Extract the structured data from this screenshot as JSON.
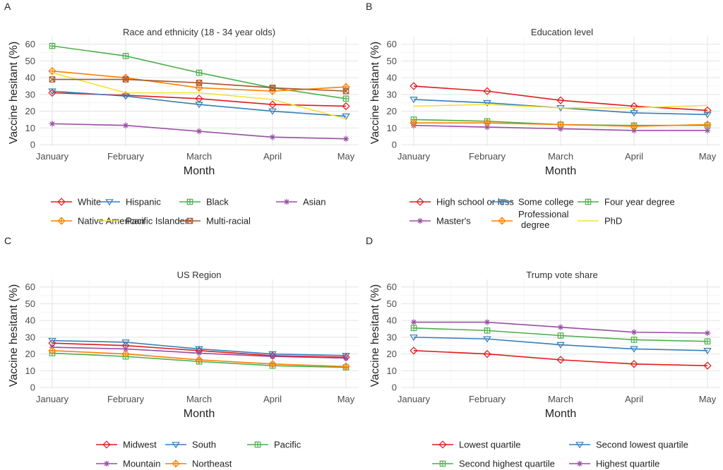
{
  "x_categories": [
    "January",
    "February",
    "March",
    "April",
    "May"
  ],
  "xlabel": "Month",
  "ylabel": "Vaccine hesitant (%)",
  "y_ticks": [
    0,
    10,
    20,
    30,
    40,
    50,
    60
  ],
  "chart_data": [
    {
      "type": "line",
      "panel_label": "A",
      "title": "Race and ethnicity (18 - 34 year olds)",
      "ylim": [
        0,
        62
      ],
      "grid": true,
      "legend_position": "bottom",
      "series": [
        {
          "name": "White",
          "color": "#e41a1c",
          "marker": "diamond",
          "values": [
            31,
            29.5,
            27.5,
            24,
            23
          ]
        },
        {
          "name": "Hispanic",
          "color": "#377eb8",
          "marker": "triangle-down",
          "values": [
            32,
            29,
            24,
            20,
            17
          ]
        },
        {
          "name": "Black",
          "color": "#4daf4a",
          "marker": "square-plus",
          "values": [
            59,
            53,
            43,
            34,
            27.5
          ]
        },
        {
          "name": "Asian",
          "color": "#984ea3",
          "marker": "asterisk",
          "values": [
            12.5,
            11.5,
            8,
            4.5,
            3.5
          ]
        },
        {
          "name": "Native American",
          "color": "#ff7f00",
          "marker": "diamond-plus",
          "values": [
            44,
            40,
            34,
            32,
            34.5
          ]
        },
        {
          "name": "Pacific Islander",
          "color": "#f2e233",
          "marker": "none",
          "values": [
            43,
            31,
            31,
            27,
            15.5
          ]
        },
        {
          "name": "Multi-racial",
          "color": "#a65628",
          "marker": "square-cross",
          "values": [
            39,
            39,
            37,
            34,
            32
          ]
        }
      ]
    },
    {
      "type": "line",
      "panel_label": "B",
      "title": "Education level",
      "ylim": [
        0,
        62
      ],
      "grid": true,
      "legend_position": "bottom",
      "series": [
        {
          "name": "High school or less",
          "color": "#e41a1c",
          "marker": "diamond",
          "values": [
            35,
            32,
            26.5,
            23,
            20.5
          ]
        },
        {
          "name": "Some college",
          "color": "#377eb8",
          "marker": "triangle-down",
          "values": [
            27,
            25,
            22,
            19,
            18
          ]
        },
        {
          "name": "Four year degree",
          "color": "#4daf4a",
          "marker": "square-plus",
          "values": [
            15,
            14,
            12,
            11.5,
            11.5
          ]
        },
        {
          "name": "Master's",
          "color": "#984ea3",
          "marker": "asterisk",
          "values": [
            11.5,
            10.5,
            9.5,
            8.5,
            8.5
          ]
        },
        {
          "name": "Professional\ndegree",
          "color": "#ff7f00",
          "marker": "diamond-plus",
          "values": [
            13,
            13,
            12,
            11,
            12
          ]
        },
        {
          "name": "PhD",
          "color": "#f2e233",
          "marker": "none",
          "values": [
            23,
            24,
            22,
            22,
            23.5
          ]
        }
      ]
    },
    {
      "type": "line",
      "panel_label": "C",
      "title": "US Region",
      "ylim": [
        0,
        62
      ],
      "grid": true,
      "legend_position": "bottom",
      "series": [
        {
          "name": "Midwest",
          "color": "#e41a1c",
          "marker": "diamond",
          "values": [
            26.5,
            25,
            22,
            19,
            18
          ]
        },
        {
          "name": "South",
          "color": "#377eb8",
          "marker": "triangle-down",
          "values": [
            28,
            27,
            23,
            20,
            19
          ]
        },
        {
          "name": "Pacific",
          "color": "#4daf4a",
          "marker": "square-plus",
          "values": [
            20.5,
            18.5,
            15.5,
            13,
            12
          ]
        },
        {
          "name": "Mountain",
          "color": "#984ea3",
          "marker": "asterisk",
          "values": [
            24,
            23,
            20.5,
            18.5,
            17.5
          ]
        },
        {
          "name": "Northeast",
          "color": "#ff7f00",
          "marker": "diamond-plus",
          "values": [
            22,
            20,
            16.5,
            14,
            12.5
          ]
        }
      ]
    },
    {
      "type": "line",
      "panel_label": "D",
      "title": "Trump vote share",
      "ylim": [
        0,
        62
      ],
      "grid": true,
      "legend_position": "bottom",
      "series": [
        {
          "name": "Lowest quartile",
          "color": "#e41a1c",
          "marker": "diamond",
          "values": [
            22,
            20,
            16.5,
            14,
            13
          ]
        },
        {
          "name": "Second lowest quartile",
          "color": "#377eb8",
          "marker": "triangle-down",
          "values": [
            30,
            29,
            25.5,
            23,
            22
          ]
        },
        {
          "name": "Second highest quartile",
          "color": "#4daf4a",
          "marker": "square-plus",
          "values": [
            35.5,
            34,
            31,
            28.5,
            27.5
          ]
        },
        {
          "name": "Highest quartile",
          "color": "#984ea3",
          "marker": "asterisk",
          "values": [
            39,
            39,
            36,
            33,
            32.5
          ]
        }
      ]
    }
  ]
}
